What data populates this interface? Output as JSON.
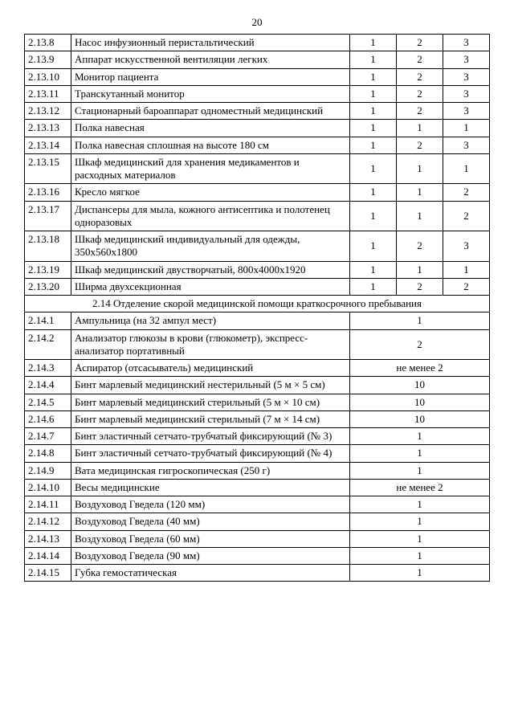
{
  "page_number": "20",
  "section_214_title": "2.14 Отделение скорой медицинской помощи краткосрочного пребывания",
  "rows_213": [
    {
      "n": "2.13.8",
      "d": "Насос инфузионный перистальтический",
      "v": [
        "1",
        "2",
        "3"
      ]
    },
    {
      "n": "2.13.9",
      "d": "Аппарат искусственной вентиляции легких",
      "v": [
        "1",
        "2",
        "3"
      ]
    },
    {
      "n": "2.13.10",
      "d": "Монитор пациента",
      "v": [
        "1",
        "2",
        "3"
      ]
    },
    {
      "n": "2.13.11",
      "d": "Транскутанный монитор",
      "v": [
        "1",
        "2",
        "3"
      ]
    },
    {
      "n": "2.13.12",
      "d": "Стационарный бароаппарат одноместный медицинский",
      "v": [
        "1",
        "2",
        "3"
      ]
    },
    {
      "n": "2.13.13",
      "d": "Полка навесная",
      "v": [
        "1",
        "1",
        "1"
      ]
    },
    {
      "n": "2.13.14",
      "d": "Полка навесная сплошная на высоте 180 см",
      "v": [
        "1",
        "2",
        "3"
      ]
    },
    {
      "n": "2.13.15",
      "d": "Шкаф медицинский для хранения медикаментов и расходных материалов",
      "v": [
        "1",
        "1",
        "1"
      ]
    },
    {
      "n": "2.13.16",
      "d": "Кресло мягкое",
      "v": [
        "1",
        "1",
        "2"
      ]
    },
    {
      "n": "2.13.17",
      "d": "Диспансеры для мыла, кожного антисептика и полотенец одноразовых",
      "v": [
        "1",
        "1",
        "2"
      ]
    },
    {
      "n": "2.13.18",
      "d": "Шкаф медицинский индивидуальный для одежды, 350х560х1800",
      "v": [
        "1",
        "2",
        "3"
      ]
    },
    {
      "n": "2.13.19",
      "d": "Шкаф медицинский двустворчатый, 800х4000х1920",
      "v": [
        "1",
        "1",
        "1"
      ]
    },
    {
      "n": "2.13.20",
      "d": "Ширма двухсекционная",
      "v": [
        "1",
        "2",
        "2"
      ]
    }
  ],
  "rows_214": [
    {
      "n": "2.14.1",
      "d": "Ампульница (на 32 ампул мест)",
      "m": "1"
    },
    {
      "n": "2.14.2",
      "d": "Анализатор глюкозы в крови (глюкометр), экспресс-анализатор портативный",
      "m": "2"
    },
    {
      "n": "2.14.3",
      "d": "Аспиратор (отсасыватель) медицинский",
      "m": "не менее 2"
    },
    {
      "n": "2.14.4",
      "d": "Бинт марлевый медицинский нестерильный (5 м × 5 см)",
      "m": "10"
    },
    {
      "n": "2.14.5",
      "d": "Бинт марлевый медицинский стерильный (5 м × 10 см)",
      "m": "10"
    },
    {
      "n": "2.14.6",
      "d": "Бинт марлевый медицинский стерильный (7 м × 14 см)",
      "m": "10"
    },
    {
      "n": "2.14.7",
      "d": "Бинт эластичный сетчато-трубчатый фиксирующий (№ 3)",
      "m": "1"
    },
    {
      "n": "2.14.8",
      "d": "Бинт эластичный сетчато-трубчатый фиксирующий (№ 4)",
      "m": "1"
    },
    {
      "n": "2.14.9",
      "d": "Вата медицинская гигроскопическая (250 г)",
      "m": "1"
    },
    {
      "n": "2.14.10",
      "d": "Весы медицинские",
      "m": "не менее 2"
    },
    {
      "n": "2.14.11",
      "d": "Воздуховод Гведела (120 мм)",
      "m": "1"
    },
    {
      "n": "2.14.12",
      "d": "Воздуховод Гведела (40 мм)",
      "m": "1"
    },
    {
      "n": "2.14.13",
      "d": "Воздуховод Гведела (60 мм)",
      "m": "1"
    },
    {
      "n": "2.14.14",
      "d": "Воздуховод Гведела (90 мм)",
      "m": "1"
    },
    {
      "n": "2.14.15",
      "d": "Губка гемостатическая",
      "m": "1"
    }
  ]
}
